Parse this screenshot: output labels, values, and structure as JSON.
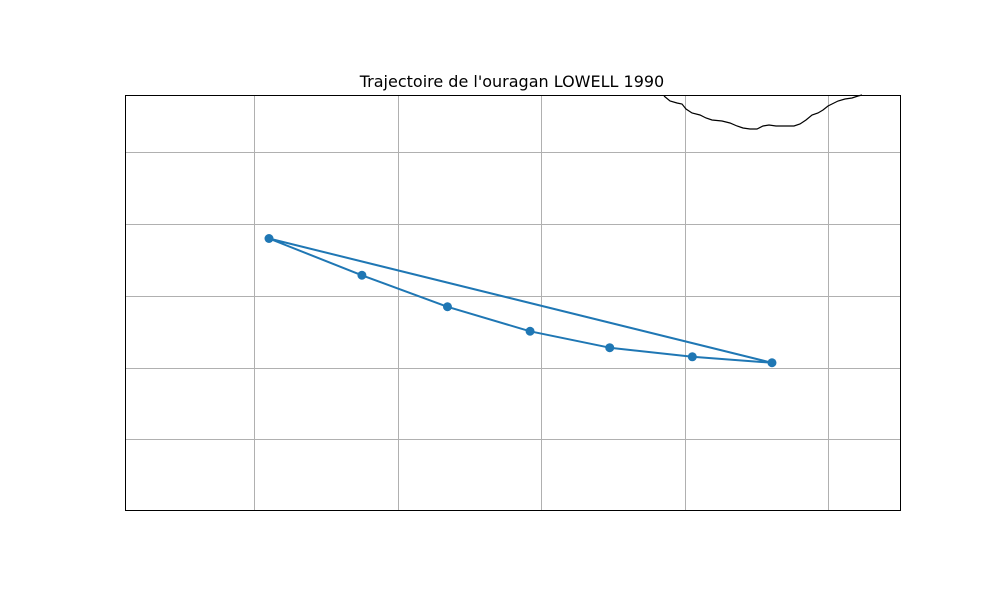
{
  "title": "Trajectoire de l'ouragan LOWELL 1990",
  "colors": {
    "track": "#1f77b4",
    "grid": "#b0b0b0",
    "coastline": "#000000",
    "frame": "#000000",
    "background": "#ffffff"
  },
  "map": {
    "grid": true,
    "axis_tick_labels_shown": false,
    "landmass": "coastline-top-right"
  },
  "chart_data": {
    "type": "line",
    "marker": "circle",
    "title": "Trajectoire de l'ouragan LOWELL 1990",
    "grid": true,
    "track": [
      {
        "x": 0.0,
        "y": 3.9
      },
      {
        "x": 3.15,
        "y": 2.85
      },
      {
        "x": 6.05,
        "y": 1.95
      },
      {
        "x": 8.85,
        "y": 1.25
      },
      {
        "x": 11.55,
        "y": 0.78
      },
      {
        "x": 14.35,
        "y": 0.52
      },
      {
        "x": 17.05,
        "y": 0.35
      },
      {
        "x": 0.0,
        "y": 3.9
      }
    ]
  }
}
